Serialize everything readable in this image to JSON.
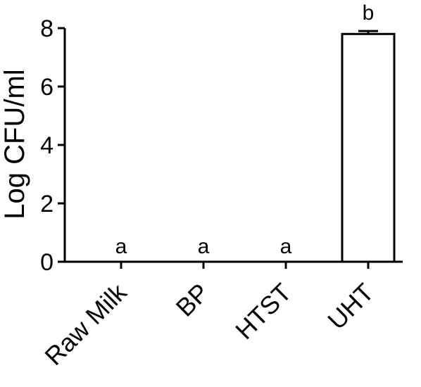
{
  "chart_data": {
    "type": "bar",
    "title": "",
    "xlabel": "",
    "ylabel": "Log CFU/ml",
    "ylim": [
      0,
      8
    ],
    "yticks": [
      0,
      2,
      4,
      6,
      8
    ],
    "categories": [
      "Raw Milk",
      "BP",
      "HTST",
      "UHT"
    ],
    "values": [
      0,
      0,
      0,
      7.8
    ],
    "errors": [
      0,
      0,
      0,
      0.1
    ],
    "significance_labels": [
      "a",
      "a",
      "a",
      "b"
    ],
    "grid": false,
    "legend": "none",
    "bar_color": "#ffffff",
    "edge_color": "#000000"
  }
}
